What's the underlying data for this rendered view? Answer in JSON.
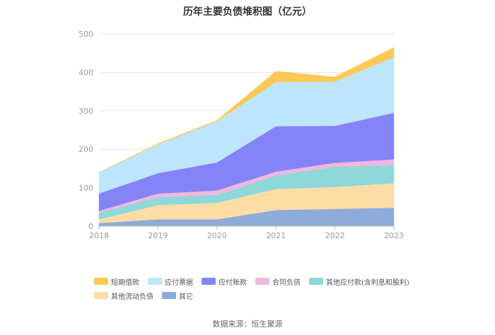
{
  "chart_data": {
    "type": "area",
    "stacked": true,
    "title": "历年主要负债堆积图（亿元）",
    "categories": [
      "2018",
      "2019",
      "2020",
      "2021",
      "2022",
      "2023"
    ],
    "ylim": [
      0,
      500
    ],
    "yticks": [
      0,
      100,
      200,
      300,
      400,
      500
    ],
    "grid": true,
    "legend_position": "bottom",
    "series": [
      {
        "name": "其它",
        "color": "#8EABDA",
        "values": [
          8,
          18,
          18,
          42,
          45,
          48
        ]
      },
      {
        "name": "其他流动负债",
        "color": "#FDDDA6",
        "values": [
          10,
          37,
          43,
          55,
          57,
          64
        ]
      },
      {
        "name": "其他应付款(含利息和股利)",
        "color": "#8CD8DA",
        "values": [
          17,
          20,
          20,
          35,
          52,
          47
        ]
      },
      {
        "name": "合同负债",
        "color": "#EEB8DF",
        "values": [
          5,
          10,
          12,
          10,
          11,
          15
        ]
      },
      {
        "name": "应付账款",
        "color": "#8583F8",
        "values": [
          45,
          53,
          73,
          118,
          96,
          121
        ]
      },
      {
        "name": "应付票据",
        "color": "#BDE6FC",
        "values": [
          55,
          75,
          107,
          115,
          115,
          145
        ]
      },
      {
        "name": "短期借款",
        "color": "#FCC956",
        "values": [
          0,
          2,
          2,
          28,
          12,
          25
        ]
      }
    ]
  },
  "legend_rows": [
    [
      {
        "label": "短期借款",
        "color": "#FCC956"
      },
      {
        "label": "应付票据",
        "color": "#BDE6FC"
      },
      {
        "label": "应付账款",
        "color": "#8583F8"
      },
      {
        "label": "合同负债",
        "color": "#EEB8DF"
      },
      {
        "label": "其他应付款(含利息和股利)",
        "color": "#8CD8DA"
      }
    ],
    [
      {
        "label": "其他流动负债",
        "color": "#FDDDA6"
      },
      {
        "label": "其它",
        "color": "#8EABDA"
      }
    ]
  ],
  "source": "数据来源：恒生聚源"
}
